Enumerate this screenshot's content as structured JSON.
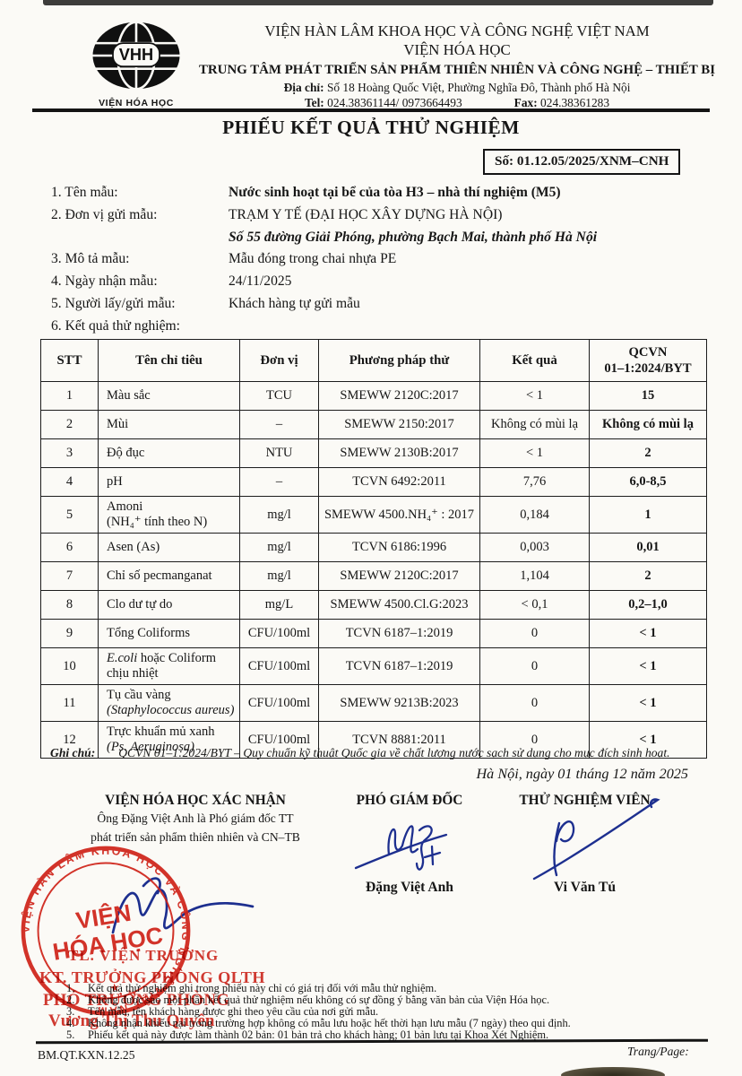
{
  "header": {
    "logo_text": "VHH",
    "logo_caption": "VIỆN HÓA HỌC",
    "line1": "VIỆN HÀN LÂM KHOA HỌC VÀ CÔNG NGHỆ VIỆT NAM",
    "line2": "VIỆN HÓA HỌC",
    "line3": "TRUNG TÂM PHÁT TRIỂN SẢN PHẨM THIÊN NHIÊN VÀ CÔNG NGHỆ – THIẾT BỊ",
    "address_label": "Địa chỉ:",
    "address": "Số 18 Hoàng Quốc Việt, Phường Nghĩa Đô, Thành phố Hà Nội",
    "tel_label": "Tel:",
    "tel": "024.38361144/ 0973664493",
    "fax_label": "Fax:",
    "fax": "024.38361283"
  },
  "title": "PHIẾU KẾT QUẢ THỬ NGHIỆM",
  "doc_number": "Số: 01.12.05/2025/XNM–CNH",
  "fields": [
    {
      "label": "1. Tên mẫu:",
      "value": "Nước sinh hoạt tại bể của tòa H3 – nhà thí nghiệm (M5)"
    },
    {
      "label": "2. Đơn vị gửi mẫu:",
      "value": "TRẠM Y TẾ (ĐẠI HỌC XÂY DỰNG HÀ NỘI)",
      "value2": "Số 55 đường Giải Phóng, phường Bạch Mai, thành phố Hà Nội"
    },
    {
      "label": "3. Mô tả mẫu:",
      "value": "Mẫu đóng trong chai nhựa PE"
    },
    {
      "label": "4. Ngày nhận mẫu:",
      "value": "24/11/2025"
    },
    {
      "label": "5. Người lấy/gửi mẫu:",
      "value": "Khách hàng tự gửi mẫu"
    },
    {
      "label": "6. Kết quả thử nghiệm:",
      "value": ""
    }
  ],
  "table": {
    "headers": [
      "STT",
      "Tên chỉ tiêu",
      "Đơn vị",
      "Phương pháp thử",
      "Kết quả",
      "QCVN\n01–1:2024/BYT"
    ],
    "rows": [
      {
        "num": "1",
        "name": "Màu sắc",
        "unit": "TCU",
        "method": "SMEWW 2120C:2017",
        "result": "< 1",
        "limit": "15"
      },
      {
        "num": "2",
        "name": "Mùi",
        "unit": "–",
        "method": "SMEWW 2150:2017",
        "result": "Không có mùi lạ",
        "limit": "Không có mùi lạ"
      },
      {
        "num": "3",
        "name": "Độ đục",
        "unit": "NTU",
        "method": "SMEWW 2130B:2017",
        "result": "< 1",
        "limit": "2"
      },
      {
        "num": "4",
        "name": "pH",
        "unit": "–",
        "method": "TCVN 6492:2011",
        "result": "7,76",
        "limit": "6,0-8,5"
      },
      {
        "num": "5",
        "name": "Amoni",
        "sub": "(NH₄⁺ tính theo N)",
        "sub_italic": false,
        "unit": "mg/l",
        "method": "SMEWW 4500.NH₄⁺ : 2017",
        "result": "0,184",
        "limit": "1"
      },
      {
        "num": "6",
        "name": "Asen (As)",
        "unit": "mg/l",
        "method": "TCVN 6186:1996",
        "result": "0,003",
        "limit": "0,01"
      },
      {
        "num": "7",
        "name": "Chỉ số pecmanganat",
        "unit": "mg/l",
        "method": "SMEWW 2120C:2017",
        "result": "1,104",
        "limit": "2"
      },
      {
        "num": "8",
        "name": "Clo dư tự do",
        "unit": "mg/L",
        "method": "SMEWW 4500.Cl.G:2023",
        "result": "< 0,1",
        "limit": "0,2–1,0"
      },
      {
        "num": "9",
        "name": "Tổng Coliforms",
        "unit": "CFU/100ml",
        "method": "TCVN 6187–1:2019",
        "result": "0",
        "limit": "< 1"
      },
      {
        "num": "10",
        "name_italic_prefix": "E.coli",
        "name": " hoặc Coliform chịu nhiệt",
        "unit": "CFU/100ml",
        "method": "TCVN 6187–1:2019",
        "result": "0",
        "limit": "< 1"
      },
      {
        "num": "11",
        "name": "Tụ cầu vàng",
        "sub": "(Staphylococcus aureus)",
        "sub_italic": true,
        "unit": "CFU/100ml",
        "method": "SMEWW 9213B:2023",
        "result": "0",
        "limit": "< 1"
      },
      {
        "num": "12",
        "name": "Trực khuẩn mủ xanh",
        "sub": "(Ps. Aeruginosa)",
        "sub_italic": true,
        "unit": "CFU/100ml",
        "method": "TCVN 8881:2011",
        "result": "0",
        "limit": "< 1"
      }
    ]
  },
  "note": {
    "label": "Ghi chú:",
    "text": "QCVN 01–1:2024/BYT – Quy chuẩn kỹ thuật Quốc gia về chất lượng nước sạch sử dụng cho mục đích sinh hoạt."
  },
  "date_line": "Hà Nội, ngày 01 tháng 12 năm 2025",
  "signatures": {
    "left_title": "VIỆN HÓA HỌC XÁC NHẬN",
    "left_line1": "Ông Đặng Việt Anh là Phó giám đốc TT",
    "left_line2": "phát triển sản phẩm thiên nhiên và CN–TB",
    "mid_title": "PHÓ GIÁM ĐỐC",
    "mid_name": "Đặng Việt Anh",
    "right_title": "THỬ NGHIỆM VIÊN",
    "right_name": "Vi Văn Tú"
  },
  "stamp": {
    "ring_text": "VIỆN HÀN LÂM KHOA HỌC VÀ CÔNG NGHỆ VIỆT NAM",
    "center_line1": "VIỆN",
    "center_line2": "HÓA HỌC",
    "star": "★",
    "color": "#cf241a"
  },
  "red_block": {
    "line1": "TL. VIỆN TRƯỞNG",
    "line2": "KT. TRƯỞNG PHÒNG QLTH",
    "line3": "PHÓ TRƯỞNG PHÒNG",
    "line4": "Vương Thị Thu Quyên"
  },
  "footnotes": [
    {
      "num": "1.",
      "text": "Kết quả thử nghiệm ghi trong phiếu này chỉ có giá trị đối với mẫu thử nghiệm."
    },
    {
      "num": "2.",
      "text": "Không được sao một phần kết quả thử nghiệm nếu không có sự đồng ý bằng văn bản của Viện Hóa học."
    },
    {
      "num": "3.",
      "text": "Tên mẫu, tên khách hàng được ghi theo yêu cầu của nơi gửi mẫu."
    },
    {
      "num": "4.",
      "text": "Không nhận khiếu nại trong trường hợp không có mẫu lưu hoặc hết thời hạn lưu mẫu (7 ngày) theo qui định."
    },
    {
      "num": "5.",
      "text": "Phiếu kết quả này được làm thành 02 bản: 01 bản trả cho khách hàng; 01 bản lưu tại Khoa Xét Nghiệm."
    }
  ],
  "footer": {
    "code": "BM.QT.KXN.12.25",
    "page_label": "Trang/Page:"
  }
}
